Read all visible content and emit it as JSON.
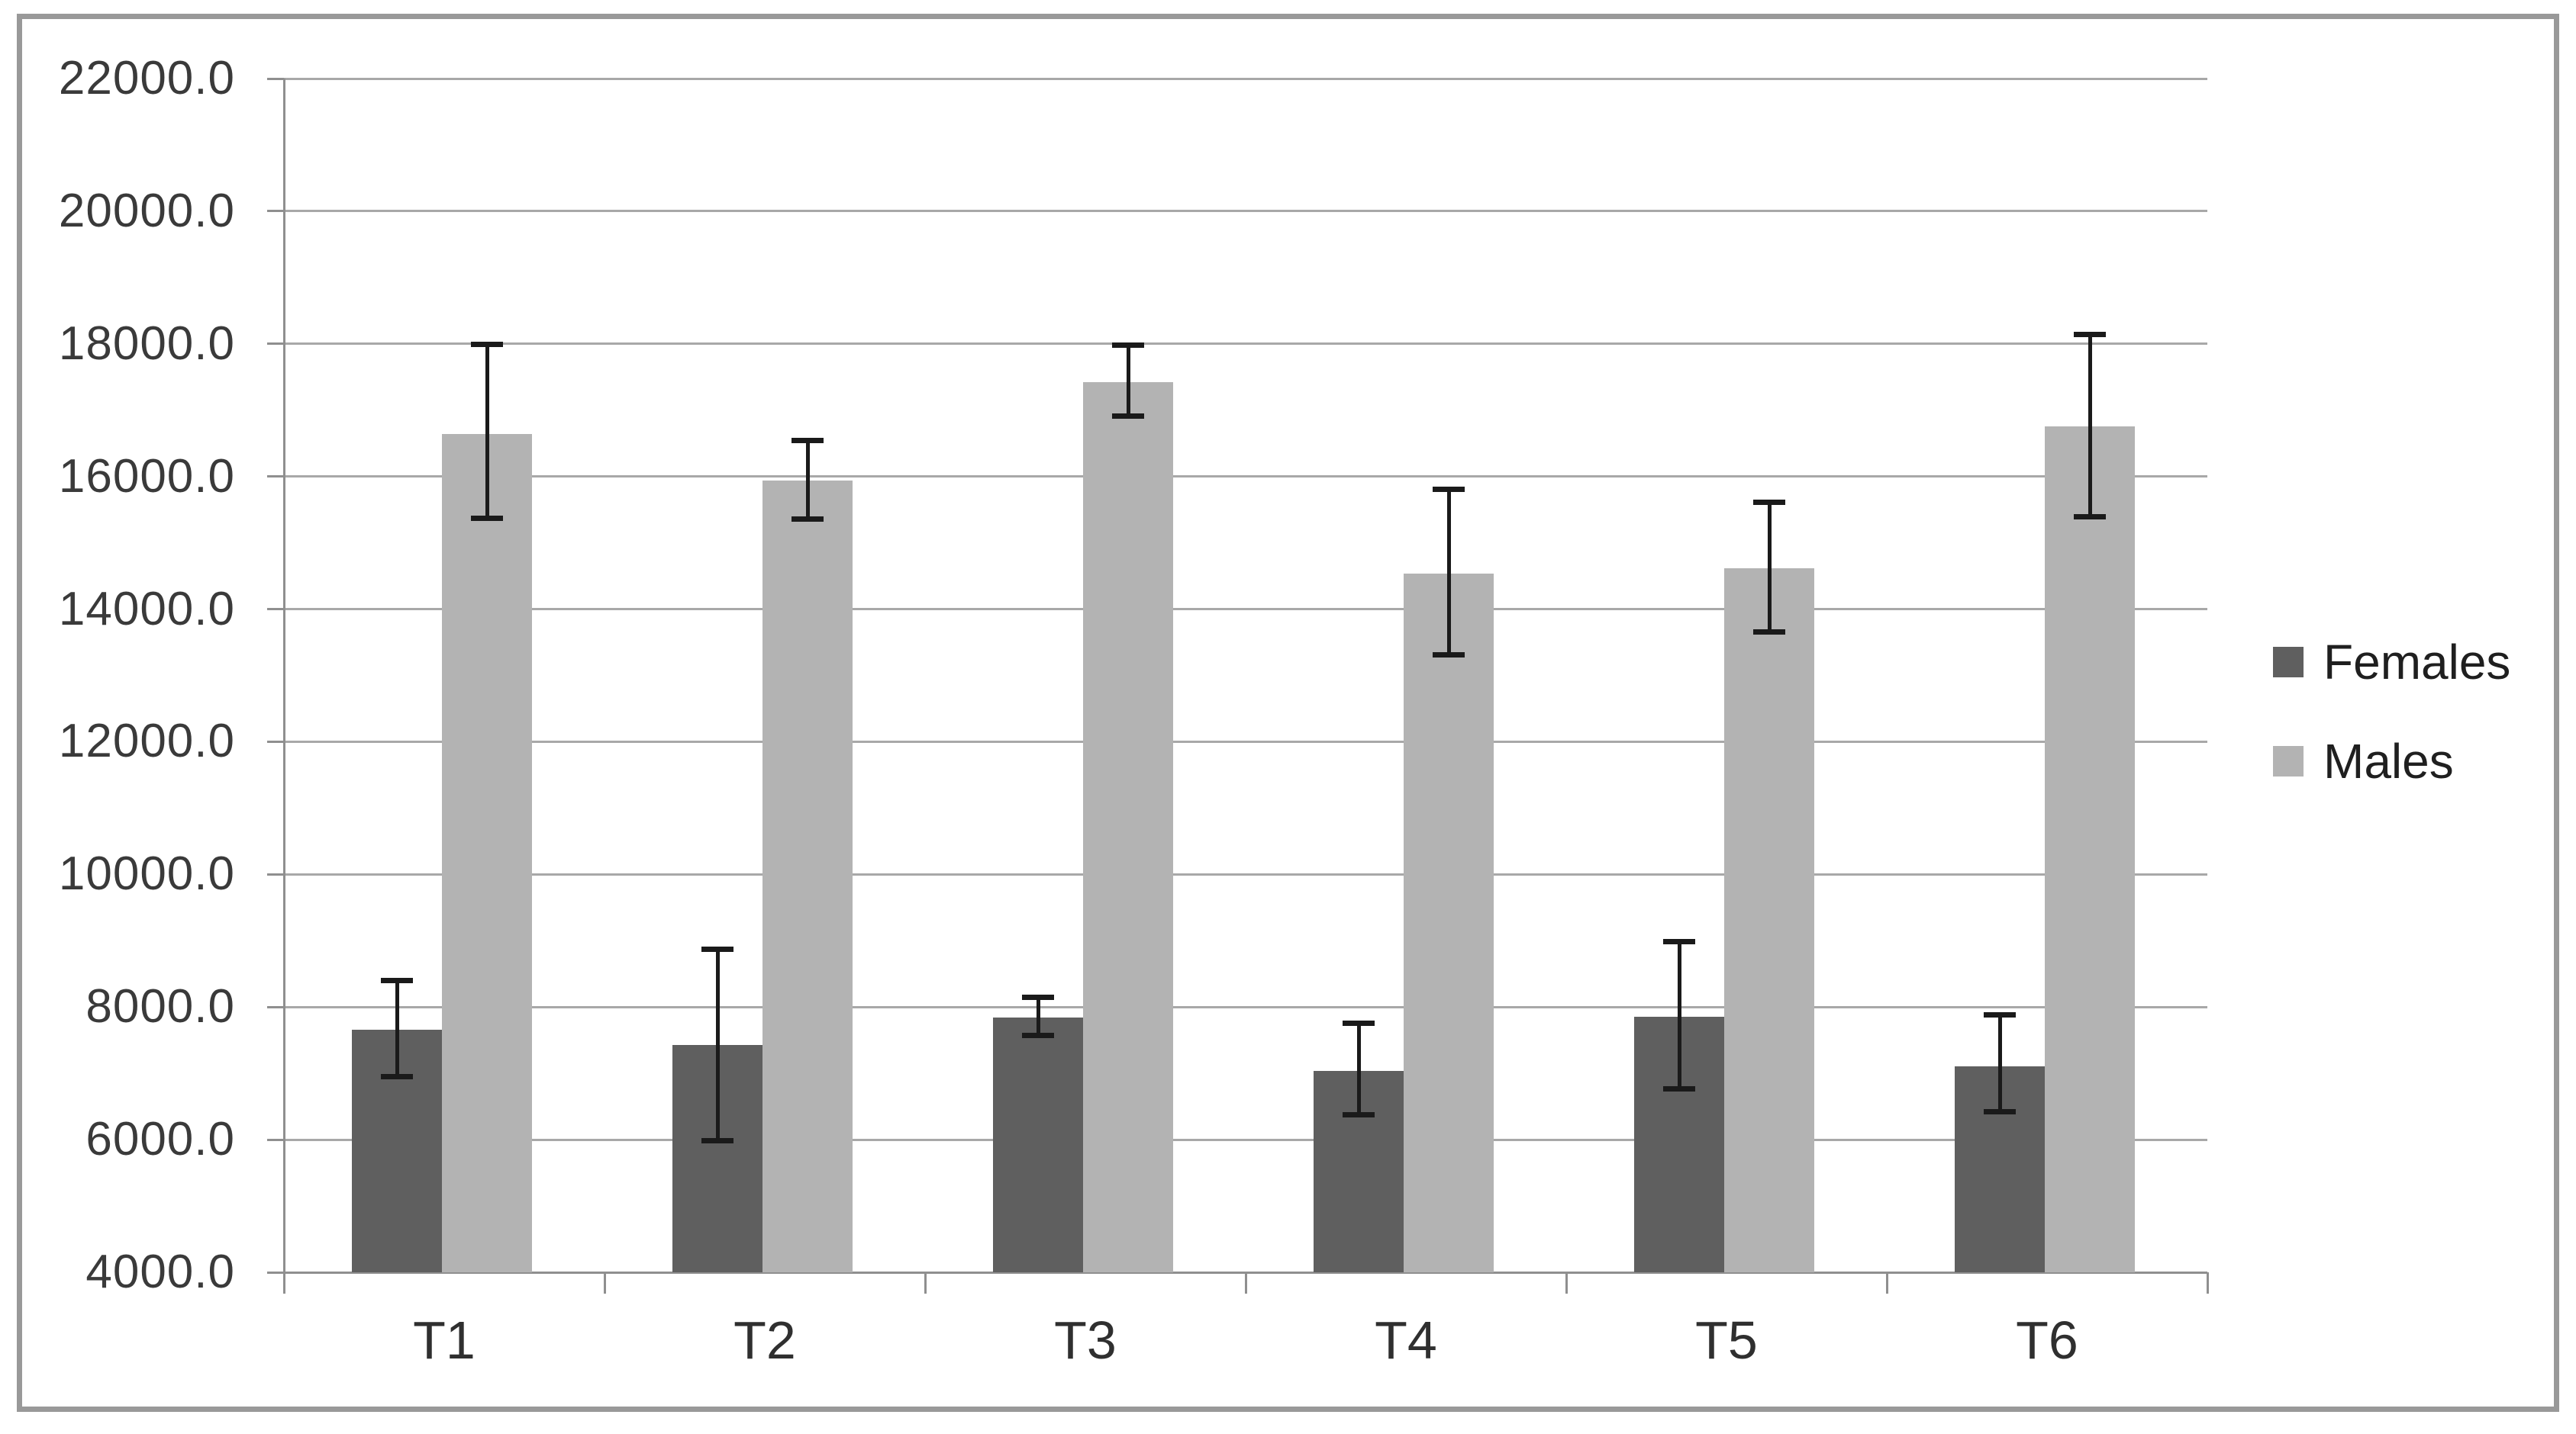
{
  "chart_data": {
    "type": "bar",
    "title": "",
    "xlabel": "",
    "ylabel": "",
    "categories": [
      "T1",
      "T2",
      "T3",
      "T4",
      "T5",
      "T6"
    ],
    "series": [
      {
        "name": "Females",
        "color": "#5F5F5F",
        "values": [
          7660,
          7430,
          7840,
          7040,
          7850,
          7110
        ],
        "error_low": [
          6940,
          5980,
          7570,
          6370,
          6760,
          6420
        ],
        "error_high": [
          8400,
          8880,
          8150,
          7760,
          8990,
          7890
        ]
      },
      {
        "name": "Males",
        "color": "#B3B3B3",
        "values": [
          16640,
          15940,
          17420,
          14540,
          14620,
          16750
        ],
        "error_low": [
          15360,
          15350,
          16900,
          13300,
          13650,
          15390
        ],
        "error_high": [
          18000,
          16550,
          17990,
          15810,
          15620,
          18150
        ]
      }
    ],
    "ylim": [
      4000,
      22000
    ],
    "ytick_step": 2000,
    "ytick_decimals": 1,
    "grid": true,
    "legend_position": "right",
    "colors": {
      "grid_color": "#A8A8A8",
      "axis_color": "#8F8F8F",
      "error_bar_color": "#1A1A1A",
      "frame_border_color": "#999999",
      "background": "#FFFFFF",
      "tick_label_color": "#3A3A3A"
    }
  }
}
